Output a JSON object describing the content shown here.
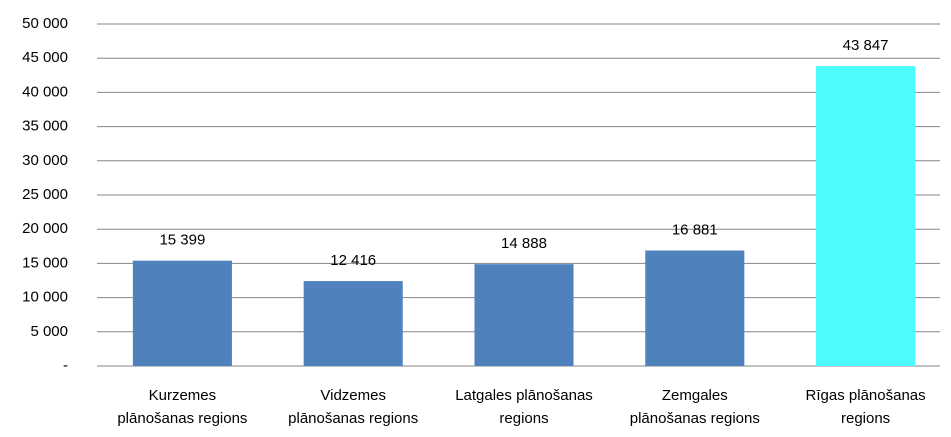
{
  "chart_data": {
    "type": "bar",
    "categories": [
      "Kurzemes\nplānošanas regions",
      "Vidzemes\nplānošanas regions",
      "Latgales plānošanas\nregions",
      "Zemgales\nplānošanas regions",
      "Rīgas plānošanas\nregions"
    ],
    "values": [
      15399,
      12416,
      14888,
      16881,
      43847
    ],
    "value_labels": [
      "15 399",
      "12 416",
      "14 888",
      "16 881",
      "43 847"
    ],
    "colors": [
      "#4f81bd",
      "#4f81bd",
      "#4f81bd",
      "#4f81bd",
      "#4dfcfc"
    ],
    "ylim": [
      0,
      50000
    ],
    "yticks": [
      {
        "value": 0,
        "label": "-"
      },
      {
        "value": 5000,
        "label": "5 000"
      },
      {
        "value": 10000,
        "label": "10 000"
      },
      {
        "value": 15000,
        "label": "15 000"
      },
      {
        "value": 20000,
        "label": "20 000"
      },
      {
        "value": 25000,
        "label": "25 000"
      },
      {
        "value": 30000,
        "label": "30 000"
      },
      {
        "value": 35000,
        "label": "35 000"
      },
      {
        "value": 40000,
        "label": "40 000"
      },
      {
        "value": 45000,
        "label": "45 000"
      },
      {
        "value": 50000,
        "label": "50 000"
      }
    ],
    "grid": true
  }
}
